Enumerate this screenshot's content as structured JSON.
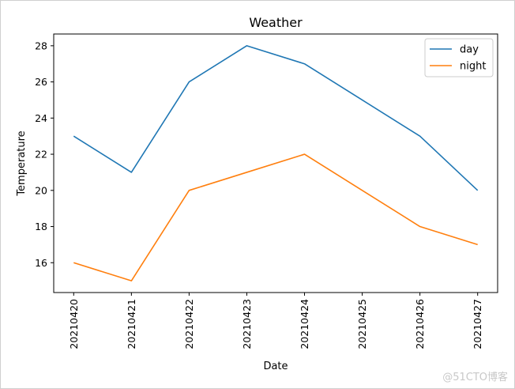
{
  "chart_data": {
    "type": "line",
    "title": "Weather",
    "xlabel": "Date",
    "ylabel": "Temperature",
    "categories": [
      "20210420",
      "20210421",
      "20210422",
      "20210423",
      "20210424",
      "20210425",
      "20210426",
      "20210427"
    ],
    "series": [
      {
        "name": "day",
        "color": "#1f77b4",
        "values": [
          23,
          21,
          26,
          28,
          27,
          25,
          23,
          20
        ]
      },
      {
        "name": "night",
        "color": "#ff7f0e",
        "values": [
          16,
          15,
          20,
          21,
          22,
          20,
          18,
          17
        ]
      }
    ],
    "ylim": [
      14.35,
      28.65
    ],
    "yticks": [
      16,
      18,
      20,
      22,
      24,
      26,
      28
    ],
    "grid": false,
    "legend_position": "top-right"
  },
  "watermark": "@51CTO博客"
}
